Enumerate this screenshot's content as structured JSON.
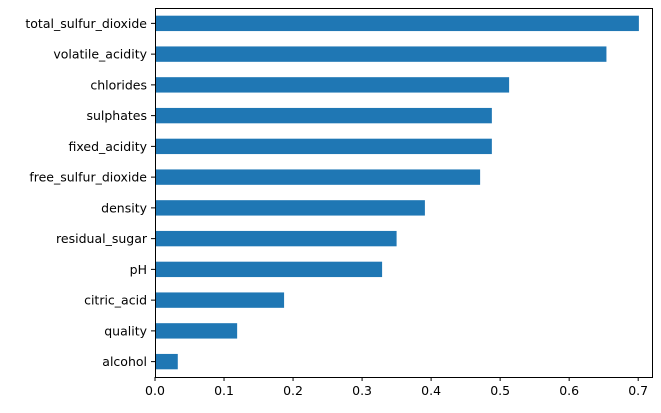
{
  "chart_data": {
    "type": "bar",
    "orientation": "horizontal",
    "categories": [
      "total_sulfur_dioxide",
      "volatile_acidity",
      "chlorides",
      "sulphates",
      "fixed_acidity",
      "free_sulfur_dioxide",
      "density",
      "residual_sugar",
      "pH",
      "citric_acid",
      "quality",
      "alcohol"
    ],
    "values": [
      0.701,
      0.654,
      0.513,
      0.488,
      0.488,
      0.471,
      0.391,
      0.35,
      0.329,
      0.187,
      0.119,
      0.033
    ],
    "xlim": [
      0,
      0.72
    ],
    "xticks": [
      0.0,
      0.1,
      0.2,
      0.3,
      0.4,
      0.5,
      0.6,
      0.7
    ],
    "xtick_labels": [
      "0.0",
      "0.1",
      "0.2",
      "0.3",
      "0.4",
      "0.5",
      "0.6",
      "0.7"
    ],
    "title": "",
    "xlabel": "",
    "ylabel": "",
    "grid": false,
    "legend": "none",
    "bar_color": "#1f77b4"
  }
}
